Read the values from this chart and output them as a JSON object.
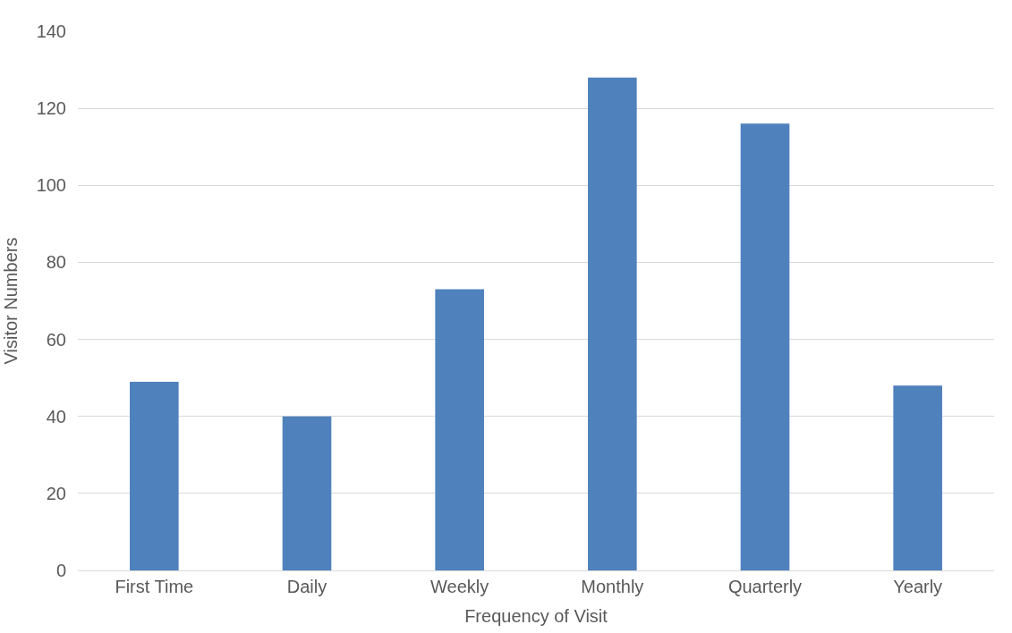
{
  "chart_data": {
    "type": "bar",
    "xlabel": "Frequency of Visit",
    "ylabel": "Visitor Numbers",
    "categories": [
      "First Time",
      "Daily",
      "Weekly",
      "Monthly",
      "Quarterly",
      "Yearly"
    ],
    "values": [
      49,
      40,
      73,
      128,
      116,
      48
    ],
    "color": "#4f81bd",
    "ylim": [
      0,
      140
    ],
    "yticks": [
      0,
      20,
      40,
      60,
      80,
      100,
      120,
      140
    ],
    "grid": "y",
    "legend": false
  }
}
